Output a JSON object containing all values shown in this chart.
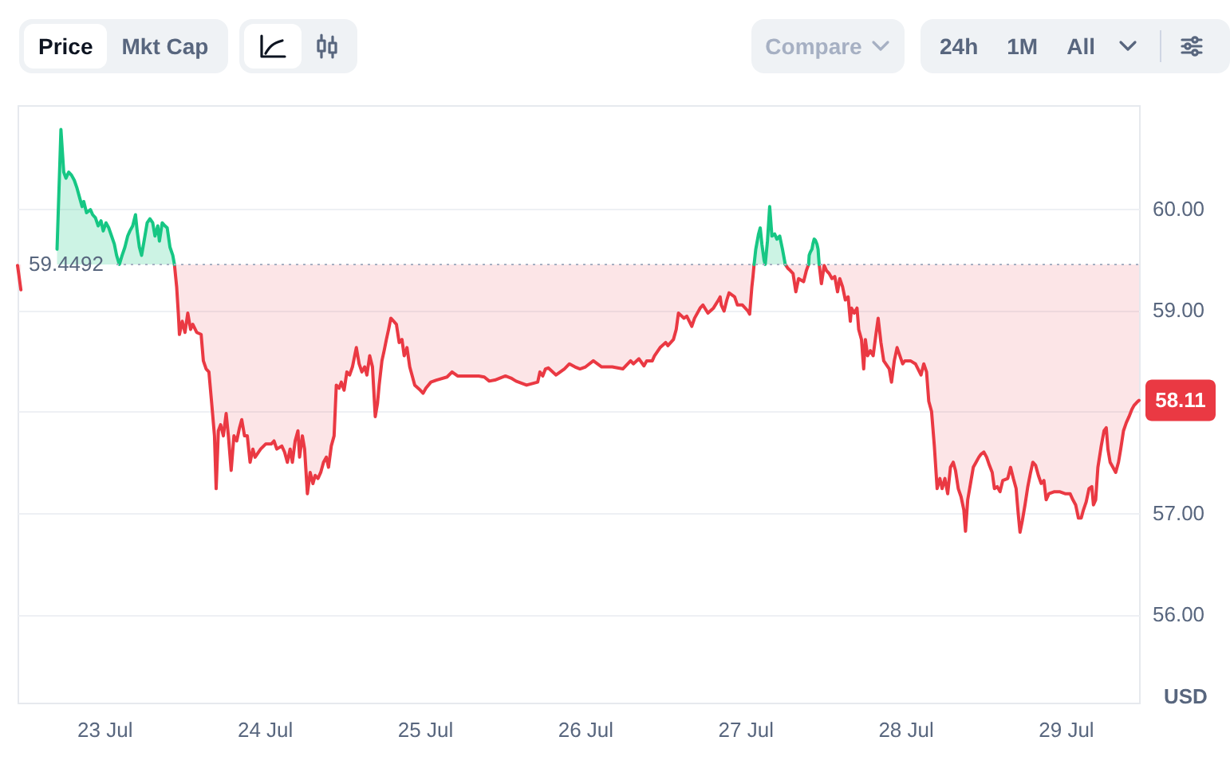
{
  "chart_data": {
    "type": "line",
    "annotations": [
      "Price",
      "Mkt Cap",
      "Compare",
      "24h",
      "1M",
      "All",
      {
        "text": "58.11",
        "x": "--07-29T11:00",
        "y": 58.11
      }
    ],
    "ylabel": "USD",
    "xlim": [
      "--07-22T11:00",
      "--07-29T11:00"
    ],
    "xticks": [
      {
        "value": "--07-23",
        "label": "23 Jul"
      },
      {
        "value": "--07-24",
        "label": "24 Jul"
      },
      {
        "value": "--07-25",
        "label": "25 Jul"
      },
      {
        "value": "--07-26",
        "label": "26 Jul"
      },
      {
        "value": "--07-27",
        "label": "27 Jul"
      },
      {
        "value": "--07-28",
        "label": "28 Jul"
      },
      {
        "value": "--07-29",
        "label": "29 Jul"
      }
    ],
    "ylim": [
      55.13,
      61.02
    ],
    "yticks": [
      {
        "value": 56,
        "label": "56.00"
      },
      {
        "value": 57,
        "label": "57.00"
      },
      {
        "value": 58,
        "label": null
      },
      {
        "value": 59,
        "label": "59.00"
      },
      {
        "value": 60,
        "label": "60.00"
      }
    ],
    "grid": "y",
    "ref_lines": [
      {
        "axis": "y",
        "value": 59.4492,
        "label": "59.4492",
        "line_style": "dotted",
        "color": "#a6b0c3"
      }
    ],
    "series": [
      {
        "color": "#ea3943",
        "x": [
          "--07-22T11:00",
          "--07-22T11:30",
          "--07-22T12:00",
          "--07-23T10:30",
          "--07-23T10:50",
          "--07-23T11:05",
          "--07-23T11:15",
          "--07-23T11:40",
          "--07-23T12:05",
          "--07-23T12:30",
          "--07-23T12:55",
          "--07-23T13:15",
          "--07-23T13:50",
          "--07-23T14:30",
          "--07-23T14:50",
          "--07-23T15:15",
          "--07-23T15:40",
          "--07-23T16:05",
          "--07-23T16:30",
          "--07-23T16:45",
          "--07-23T17:05",
          "--07-23T17:25",
          "--07-23T17:50",
          "--07-23T18:15",
          "--07-23T18:35",
          "--07-23T19:00",
          "--07-23T19:25",
          "--07-23T19:50",
          "--07-23T20:15",
          "--07-23T20:35",
          "--07-23T21:00",
          "--07-23T21:25",
          "--07-23T21:50",
          "--07-23T22:15",
          "--07-23T22:35",
          "--07-23T23:25",
          "--07-24T00:10",
          "--07-24T01:00",
          "--07-24T01:25",
          "--07-24T01:50",
          "--07-24T02:35",
          "--07-24T03:00",
          "--07-24T03:25",
          "--07-24T03:50",
          "--07-24T04:10",
          "--07-24T04:35",
          "--07-24T05:00",
          "--07-24T05:15",
          "--07-24T05:40",
          "--07-24T06:00",
          "--07-24T06:25",
          "--07-24T06:50",
          "--07-24T07:15",
          "--07-24T07:35",
          "--07-24T08:00",
          "--07-24T08:25",
          "--07-24T08:50",
          "--07-24T09:15",
          "--07-24T09:35",
          "--07-24T10:00",
          "--07-24T10:25",
          "--07-24T10:45",
          "--07-24T11:10",
          "--07-24T11:30",
          "--07-24T11:55",
          "--07-24T12:20",
          "--07-24T12:45",
          "--07-24T13:10",
          "--07-24T13:30",
          "--07-24T13:45",
          "--07-24T14:10",
          "--07-24T14:35",
          "--07-24T15:00",
          "--07-24T15:20",
          "--07-24T15:45",
          "--07-24T16:10",
          "--07-24T16:35",
          "--07-24T16:55",
          "--07-24T17:10",
          "--07-24T17:35",
          "--07-24T17:55",
          "--07-24T18:15",
          "--07-24T18:35",
          "--07-24T18:55",
          "--07-24T19:20",
          "--07-24T19:45",
          "--07-24T20:10",
          "--07-24T20:35",
          "--07-24T20:55",
          "--07-24T21:20",
          "--07-24T21:45",
          "--07-24T22:10",
          "--07-24T22:30",
          "--07-24T23:20",
          "--07-24T23:45",
          "--07-25T00:10",
          "--07-25T00:55",
          "--07-25T01:45",
          "--07-25T03:20",
          "--07-25T04:05",
          "--07-25T04:55",
          "--07-25T06:30",
          "--07-25T08:05",
          "--07-25T08:55",
          "--07-25T09:40",
          "--07-25T10:30",
          "--07-25T12:05",
          "--07-25T12:55",
          "--07-25T13:40",
          "--07-25T15:15",
          "--07-25T16:55",
          "--07-25T17:15",
          "--07-25T17:40",
          "--07-25T18:05",
          "--07-25T18:30",
          "--07-25T19:40",
          "--07-25T20:55",
          "--07-25T21:40",
          "--07-25T22:30",
          "--07-25T23:15",
          "--07-26T00:05",
          "--07-26T01:15",
          "--07-26T02:30",
          "--07-26T04:05",
          "--07-26T05:40",
          "--07-26T06:50",
          "--07-26T07:15",
          "--07-26T08:05",
          "--07-26T08:50",
          "--07-26T09:15",
          "--07-26T10:05",
          "--07-26T10:25",
          "--07-26T11:15",
          "--07-26T12:05",
          "--07-26T12:25",
          "--07-26T13:15",
          "--07-26T13:40",
          "--07-26T14:00",
          "--07-26T14:50",
          "--07-26T15:15",
          "--07-26T16:00",
          "--07-26T16:25",
          "--07-26T17:15",
          "--07-26T17:40",
          "--07-26T18:25",
          "--07-26T19:15",
          "--07-26T20:00",
          "--07-26T20:15",
          "--07-26T20:25",
          "--07-26T20:50",
          "--07-26T21:15",
          "--07-26T21:35",
          "--07-26T22:25",
          "--07-26T22:50",
          "--07-26T23:35",
          "--07-27T00:25",
          "--07-27T00:40",
          "--07-27T01:00",
          "--07-27T01:10",
          "--07-27T01:20",
          "--07-27T03:00",
          "--07-27T06:00",
          "--07-27T06:25",
          "--07-27T06:45",
          "--07-27T07:10",
          "--07-27T07:35",
          "--07-27T08:00",
          "--07-27T08:45",
          "--07-27T09:10",
          "--07-27T09:30",
          "--07-27T10:15",
          "--07-27T11:05",
          "--07-27T11:25",
          "--07-27T11:50",
          "--07-27T12:10",
          "--07-27T12:35",
          "--07-27T13:00",
          "--07-27T13:25",
          "--07-27T13:50",
          "--07-27T14:10",
          "--07-27T14:35",
          "--07-27T15:00",
          "--07-27T15:25",
          "--07-27T15:45",
          "--07-27T15:55",
          "--07-27T16:20",
          "--07-27T16:45",
          "--07-27T17:00",
          "--07-27T17:25",
          "--07-27T17:45",
          "--07-27T18:00",
          "--07-27T18:20",
          "--07-27T18:45",
          "--07-27T19:10",
          "--07-27T19:35",
          "--07-27T19:55",
          "--07-27T20:20",
          "--07-27T20:45",
          "--07-27T21:35",
          "--07-27T21:55",
          "--07-27T22:20",
          "--07-27T22:45",
          "--07-27T23:35",
          "--07-27T23:55",
          "--07-28T00:45",
          "--07-28T01:30",
          "--07-28T02:20",
          "--07-28T02:45",
          "--07-28T03:10",
          "--07-28T03:30",
          "--07-28T03:55",
          "--07-28T04:20",
          "--07-28T04:45",
          "--07-28T05:10",
          "--07-28T05:30",
          "--07-28T05:55",
          "--07-28T06:20",
          "--07-28T06:45",
          "--07-28T07:10",
          "--07-28T07:30",
          "--07-28T07:55",
          "--07-28T08:20",
          "--07-28T08:45",
          "--07-28T09:00",
          "--07-28T09:20",
          "--07-28T09:45",
          "--07-28T10:10",
          "--07-28T10:35",
          "--07-28T11:00",
          "--07-28T11:20",
          "--07-28T11:45",
          "--07-28T12:10",
          "--07-28T12:35",
          "--07-28T13:00",
          "--07-28T13:20",
          "--07-28T13:45",
          "--07-28T14:10",
          "--07-28T14:35",
          "--07-28T15:20",
          "--07-28T15:45",
          "--07-28T16:10",
          "--07-28T16:35",
          "--07-28T16:55",
          "--07-28T17:10",
          "--07-28T17:30",
          "--07-28T17:55",
          "--07-28T18:20",
          "--07-28T18:45",
          "--07-28T19:05",
          "--07-28T19:30",
          "--07-28T19:55",
          "--07-28T20:20",
          "--07-28T20:45",
          "--07-28T21:05",
          "--07-28T21:30",
          "--07-28T22:20",
          "--07-28T23:05",
          "--07-28T23:55",
          "--07-29T00:40",
          "--07-29T01:05",
          "--07-29T01:30",
          "--07-29T01:55",
          "--07-29T02:20",
          "--07-29T02:40",
          "--07-29T03:05",
          "--07-29T03:30",
          "--07-29T03:55",
          "--07-29T04:10",
          "--07-29T04:30",
          "--07-29T04:50",
          "--07-29T05:20",
          "--07-29T05:45",
          "--07-29T06:05",
          "--07-29T06:20",
          "--07-29T06:40",
          "--07-29T07:05",
          "--07-29T07:30",
          "--07-29T07:55",
          "--07-29T08:15",
          "--07-29T08:40",
          "--07-29T09:05",
          "--07-29T09:30",
          "--07-29T09:55",
          "--07-29T10:15",
          "--07-29T10:40",
          "--07-29T11:00"
        ],
        "values": [
          59.44,
          59.2,
          null,
          59.45,
          59.23,
          58.97,
          58.76,
          58.89,
          58.78,
          58.97,
          58.81,
          58.86,
          58.78,
          58.76,
          58.5,
          58.42,
          58.39,
          58.08,
          57.76,
          57.24,
          57.81,
          57.87,
          57.76,
          57.98,
          57.76,
          57.42,
          57.76,
          57.71,
          57.84,
          57.92,
          57.76,
          57.76,
          57.5,
          57.63,
          57.55,
          57.63,
          57.68,
          57.68,
          57.71,
          57.63,
          57.66,
          57.6,
          57.5,
          57.63,
          57.5,
          57.71,
          57.81,
          57.55,
          57.76,
          57.63,
          57.19,
          57.4,
          57.29,
          57.37,
          57.34,
          57.4,
          57.5,
          57.55,
          57.45,
          57.66,
          57.76,
          58.26,
          58.23,
          58.29,
          58.21,
          58.39,
          58.36,
          58.44,
          58.55,
          58.63,
          58.47,
          58.39,
          58.44,
          58.36,
          58.55,
          58.44,
          57.95,
          58.08,
          58.26,
          58.5,
          58.6,
          58.71,
          58.81,
          58.92,
          58.89,
          58.86,
          58.68,
          58.71,
          58.55,
          58.63,
          58.44,
          58.34,
          58.26,
          58.21,
          58.18,
          58.23,
          58.29,
          58.31,
          58.34,
          58.39,
          58.35,
          58.35,
          58.35,
          58.34,
          58.3,
          58.31,
          58.35,
          58.33,
          58.3,
          58.26,
          58.29,
          58.39,
          58.35,
          58.42,
          58.43,
          58.36,
          58.42,
          58.47,
          58.44,
          58.42,
          58.44,
          58.5,
          58.44,
          58.44,
          58.42,
          58.5,
          58.47,
          58.52,
          58.45,
          58.5,
          58.5,
          58.55,
          58.63,
          58.68,
          58.65,
          58.71,
          58.81,
          58.97,
          58.92,
          58.94,
          58.84,
          58.92,
          59.02,
          59.05,
          58.97,
          59.02,
          59.1,
          59.13,
          59.05,
          58.99,
          59.1,
          59.17,
          59.13,
          59.05,
          59.05,
          58.99,
          58.96,
          59.23,
          59.33,
          59.45,
          null,
          59.45,
          59.41,
          59.39,
          59.36,
          59.18,
          59.31,
          59.28,
          59.39,
          59.45,
          null,
          59.45,
          59.26,
          59.44,
          59.39,
          59.36,
          59.31,
          59.33,
          59.18,
          59.31,
          59.23,
          59.1,
          59.13,
          58.89,
          59.02,
          58.97,
          59.02,
          58.81,
          58.71,
          58.42,
          58.71,
          58.55,
          58.6,
          58.55,
          58.76,
          58.92,
          58.68,
          58.5,
          58.42,
          58.29,
          58.5,
          58.63,
          58.47,
          58.5,
          58.5,
          58.47,
          58.36,
          58.47,
          58.39,
          58.1,
          58.0,
          57.66,
          57.24,
          57.34,
          57.24,
          57.34,
          57.19,
          57.45,
          57.5,
          57.42,
          57.24,
          57.16,
          57.03,
          56.82,
          57.13,
          57.29,
          57.45,
          57.5,
          57.55,
          57.58,
          57.6,
          57.55,
          57.47,
          57.4,
          57.24,
          57.26,
          57.21,
          57.32,
          57.34,
          57.45,
          57.34,
          57.24,
          56.98,
          56.81,
          56.92,
          57.08,
          57.26,
          57.4,
          57.5,
          57.47,
          57.37,
          57.29,
          57.32,
          57.13,
          57.19,
          57.21,
          57.21,
          57.19,
          57.19,
          57.13,
          57.08,
          56.95,
          56.95,
          57.03,
          57.11,
          57.24,
          57.26,
          57.08,
          57.13,
          57.45,
          57.66,
          57.81,
          57.84,
          57.63,
          57.5,
          57.45,
          57.4,
          57.5,
          57.63,
          57.81,
          57.89,
          57.95,
          58.02,
          58.06,
          58.09,
          58.11
        ],
        "lower": [
          59.44,
          59.2,
          null,
          59.45,
          59.23,
          58.97,
          58.76,
          58.89,
          58.78,
          58.97,
          58.81,
          58.86,
          58.78,
          58.76,
          58.5,
          58.42,
          58.39,
          58.08,
          57.76,
          57.24,
          57.81,
          57.87,
          57.76,
          57.98,
          57.76,
          57.42,
          57.76,
          57.71,
          57.84,
          57.92,
          57.76,
          57.76,
          57.5,
          57.63,
          57.55,
          57.63,
          57.68,
          57.68,
          57.71,
          57.63,
          57.66,
          57.6,
          57.5,
          57.63,
          57.5,
          57.71,
          57.81,
          57.55,
          57.76,
          57.63,
          57.19,
          57.4,
          57.29,
          57.37,
          57.34,
          57.4,
          57.5,
          57.55,
          57.45,
          57.66,
          57.76,
          58.26,
          58.23,
          58.29,
          58.21,
          58.39,
          58.36,
          58.44,
          58.55,
          58.63,
          58.47,
          58.39,
          58.44,
          58.36,
          58.55,
          58.44,
          57.95,
          58.08,
          58.26,
          58.5,
          58.6,
          58.71,
          58.81,
          58.92,
          58.89,
          58.86,
          58.68,
          58.71,
          58.55,
          58.63,
          58.44,
          58.34,
          58.26,
          58.21,
          58.18,
          58.23,
          58.29,
          58.31,
          58.34,
          58.39,
          58.35,
          58.35,
          58.35,
          58.34,
          58.3,
          58.31,
          58.35,
          58.33,
          58.3,
          58.26,
          58.29,
          58.39,
          58.35,
          58.42,
          58.43,
          58.36,
          58.42,
          58.47,
          58.44,
          58.42,
          58.44,
          58.5,
          58.44,
          58.44,
          58.42,
          58.5,
          58.47,
          58.52,
          58.45,
          58.5,
          58.5,
          58.55,
          58.63,
          58.68,
          58.65,
          58.71,
          58.81,
          58.97,
          58.92,
          58.94,
          58.84,
          58.92,
          59.02,
          59.05,
          58.97,
          59.02,
          59.1,
          59.13,
          59.05,
          58.99,
          59.1,
          59.17,
          59.13,
          59.05,
          59.05,
          58.99,
          58.96,
          59.23,
          59.33,
          59.45,
          null,
          59.45,
          59.41,
          59.39,
          59.36,
          59.18,
          59.31,
          59.28,
          59.39,
          59.45,
          null,
          59.45,
          59.26,
          59.44,
          59.39,
          59.36,
          59.31,
          59.33,
          59.18,
          59.31,
          59.23,
          59.1,
          59.13,
          58.89,
          59.02,
          58.97,
          59.02,
          58.81,
          58.71,
          58.42,
          58.71,
          58.55,
          58.6,
          58.55,
          58.76,
          58.92,
          58.68,
          58.5,
          58.42,
          58.29,
          58.5,
          58.63,
          58.47,
          58.5,
          58.5,
          58.47,
          58.36,
          58.47,
          58.39,
          58.1,
          58.0,
          57.66,
          57.24,
          57.34,
          57.24,
          57.34,
          57.19,
          57.45,
          57.5,
          57.42,
          57.24,
          57.16,
          57.03,
          56.82,
          57.13,
          57.29,
          57.45,
          57.5,
          57.55,
          57.58,
          57.6,
          57.55,
          57.47,
          57.4,
          57.24,
          57.26,
          57.21,
          57.32,
          57.34,
          57.45,
          57.34,
          57.24,
          56.98,
          56.81,
          56.92,
          57.08,
          57.26,
          57.4,
          57.5,
          57.47,
          57.37,
          57.29,
          57.32,
          57.13,
          57.19,
          57.21,
          57.21,
          57.19,
          57.19,
          57.13,
          57.08,
          56.95,
          56.95,
          57.03,
          57.11,
          57.24,
          57.26,
          57.08,
          57.13,
          57.45,
          57.66,
          57.81,
          57.84,
          57.63,
          57.5,
          57.45,
          57.4,
          57.5,
          57.63,
          57.81,
          57.89,
          57.95,
          58.02,
          58.06,
          58.09,
          58.11
        ],
        "upper": [
          59.45,
          59.45,
          null,
          59.45,
          59.45,
          59.45,
          59.45,
          59.45,
          59.45,
          59.45,
          59.45,
          59.45,
          59.45,
          59.45,
          59.45,
          59.45,
          59.45,
          59.45,
          59.45,
          59.45,
          59.45,
          59.45,
          59.45,
          59.45,
          59.45,
          59.45,
          59.45,
          59.45,
          59.45,
          59.45,
          59.45,
          59.45,
          59.45,
          59.45,
          59.45,
          59.45,
          59.45,
          59.45,
          59.45,
          59.45,
          59.45,
          59.45,
          59.45,
          59.45,
          59.45,
          59.45,
          59.45,
          59.45,
          59.45,
          59.45,
          59.45,
          59.45,
          59.45,
          59.45,
          59.45,
          59.45,
          59.45,
          59.45,
          59.45,
          59.45,
          59.45,
          59.45,
          59.45,
          59.45,
          59.45,
          59.45,
          59.45,
          59.45,
          59.45,
          59.45,
          59.45,
          59.45,
          59.45,
          59.45,
          59.45,
          59.45,
          59.45,
          59.45,
          59.45,
          59.45,
          59.45,
          59.45,
          59.45,
          59.45,
          59.45,
          59.45,
          59.45,
          59.45,
          59.45,
          59.45,
          59.45,
          59.45,
          59.45,
          59.45,
          59.45,
          59.45,
          59.45,
          59.45,
          59.45,
          59.45,
          59.45,
          59.45,
          59.45,
          59.45,
          59.45,
          59.45,
          59.45,
          59.45,
          59.45,
          59.45,
          59.45,
          59.45,
          59.45,
          59.45,
          59.45,
          59.45,
          59.45,
          59.45,
          59.45,
          59.45,
          59.45,
          59.45,
          59.45,
          59.45,
          59.45,
          59.45,
          59.45,
          59.45,
          59.45,
          59.45,
          59.45,
          59.45,
          59.45,
          59.45,
          59.45,
          59.45,
          59.45,
          59.45,
          59.45,
          59.45,
          59.45,
          59.45,
          59.45,
          59.45,
          59.45,
          59.45,
          59.45,
          59.45,
          59.45,
          59.45,
          59.45,
          59.45,
          59.45,
          59.45,
          59.45,
          59.45,
          59.45,
          59.45,
          59.45,
          59.45,
          null,
          59.45,
          59.45,
          59.45,
          59.45,
          59.45,
          59.45,
          59.45,
          59.45,
          59.45,
          null,
          59.45,
          59.45,
          59.45,
          59.45,
          59.45,
          59.45,
          59.45,
          59.45,
          59.45,
          59.45,
          59.45,
          59.45,
          59.45,
          59.45,
          59.45,
          59.45,
          59.45,
          59.45,
          59.45,
          59.45,
          59.45,
          59.45,
          59.45,
          59.45,
          59.45,
          59.45,
          59.45,
          59.45,
          59.45,
          59.45,
          59.45,
          59.45,
          59.45,
          59.45,
          59.45,
          59.45,
          59.45,
          59.45,
          59.45,
          59.45,
          59.45,
          59.45,
          59.45,
          59.45,
          59.45,
          59.45,
          59.45,
          59.45,
          59.45,
          59.45,
          59.45,
          59.45,
          59.45,
          59.45,
          59.45,
          59.45,
          59.45,
          59.45,
          59.45,
          59.45,
          59.45,
          59.45,
          59.45,
          59.45,
          59.45,
          59.45,
          59.45,
          59.45,
          59.45,
          59.45,
          59.45,
          59.45,
          59.45,
          59.45,
          59.45,
          59.45,
          59.45,
          59.45,
          59.45,
          59.45,
          59.45,
          59.45,
          59.45,
          59.45,
          59.45,
          59.45,
          59.45,
          59.45,
          59.45,
          59.45,
          59.45,
          59.45,
          59.45,
          59.45,
          59.45,
          59.45,
          59.45,
          59.45,
          59.45,
          59.45,
          59.45,
          59.45,
          59.45,
          59.45,
          59.45,
          59.45,
          59.45,
          59.45,
          59.45,
          59.45,
          59.45,
          59.45,
          59.45,
          59.45,
          59.45
        ]
      },
      {
        "color": "#16c784",
        "x": [
          "--07-22T16:55",
          "--07-22T17:30",
          "--07-22T17:55",
          "--07-22T18:15",
          "--07-22T18:40",
          "--07-22T19:05",
          "--07-22T19:30",
          "--07-22T19:55",
          "--07-22T20:15",
          "--07-22T20:40",
          "--07-22T20:55",
          "--07-22T21:20",
          "--07-22T21:55",
          "--07-22T22:15",
          "--07-22T22:40",
          "--07-22T23:05",
          "--07-22T23:30",
          "--07-22T23:50",
          "--07-23T00:15",
          "--07-23T00:40",
          "--07-23T01:05",
          "--07-23T01:30",
          "--07-23T01:50",
          "--07-23T02:15",
          "--07-23T02:40",
          "--07-23T03:05",
          "--07-23T03:30",
          "--07-23T03:50",
          "--07-23T04:15",
          "--07-23T04:40",
          "--07-23T04:55",
          "--07-23T05:15",
          "--07-23T05:35",
          "--07-23T06:00",
          "--07-23T06:25",
          "--07-23T06:50",
          "--07-23T07:15",
          "--07-23T07:35",
          "--07-23T08:00",
          "--07-23T08:15",
          "--07-23T08:40",
          "--07-23T09:05",
          "--07-23T09:25",
          "--07-23T09:50",
          "--07-23T10:15",
          "--07-23T10:30",
          "--07-25T12:00",
          "--07-27T01:20",
          "--07-27T01:35",
          "--07-27T02:00",
          "--07-27T02:15",
          "--07-27T02:30",
          "--07-27T02:50",
          "--07-27T03:00",
          "--07-27T03:20",
          "--07-27T03:40",
          "--07-27T04:00",
          "--07-27T04:25",
          "--07-27T04:45",
          "--07-27T05:10",
          "--07-27T05:35",
          "--07-27T06:00",
          "--07-27T07:00",
          "--07-27T09:30",
          "--07-27T09:35",
          "--07-27T09:45",
          "--07-27T10:00",
          "--07-27T10:10",
          "--07-27T10:20",
          "--07-27T10:30",
          "--07-27T10:45",
          "--07-27T10:55",
          "--07-27T11:00",
          "--07-27T11:05"
        ],
        "values": [
          59.6,
          60.78,
          60.36,
          60.3,
          60.36,
          60.33,
          60.28,
          60.2,
          60.12,
          60.02,
          60.07,
          59.96,
          59.99,
          59.94,
          59.91,
          59.83,
          59.88,
          59.78,
          59.86,
          59.81,
          59.73,
          59.65,
          59.54,
          59.45,
          59.54,
          59.62,
          59.73,
          59.78,
          59.83,
          59.94,
          59.78,
          59.62,
          59.54,
          59.7,
          59.86,
          59.9,
          59.86,
          59.73,
          59.83,
          59.68,
          59.86,
          59.83,
          59.81,
          59.62,
          59.54,
          59.45,
          null,
          59.45,
          59.6,
          59.75,
          59.81,
          59.65,
          59.49,
          59.45,
          59.68,
          60.02,
          59.73,
          59.75,
          59.7,
          59.73,
          59.6,
          59.45,
          null,
          59.45,
          59.54,
          59.57,
          59.6,
          59.66,
          59.7,
          59.69,
          59.65,
          59.6,
          59.52,
          59.45
        ],
        "lower": [
          59.45,
          59.45,
          59.45,
          59.45,
          59.45,
          59.45,
          59.45,
          59.45,
          59.45,
          59.45,
          59.45,
          59.45,
          59.45,
          59.45,
          59.45,
          59.45,
          59.45,
          59.45,
          59.45,
          59.45,
          59.45,
          59.45,
          59.45,
          59.45,
          59.45,
          59.45,
          59.45,
          59.45,
          59.45,
          59.45,
          59.45,
          59.45,
          59.45,
          59.45,
          59.45,
          59.45,
          59.45,
          59.45,
          59.45,
          59.45,
          59.45,
          59.45,
          59.45,
          59.45,
          59.45,
          59.45,
          null,
          59.45,
          59.45,
          59.45,
          59.45,
          59.45,
          59.45,
          59.45,
          59.45,
          59.45,
          59.45,
          59.45,
          59.45,
          59.45,
          59.45,
          59.45,
          null,
          59.45,
          59.45,
          59.45,
          59.45,
          59.45,
          59.45,
          59.45,
          59.45,
          59.45,
          59.45,
          59.45
        ],
        "upper": [
          59.6,
          60.78,
          60.36,
          60.3,
          60.36,
          60.33,
          60.28,
          60.2,
          60.12,
          60.02,
          60.07,
          59.96,
          59.99,
          59.94,
          59.91,
          59.83,
          59.88,
          59.78,
          59.86,
          59.81,
          59.73,
          59.65,
          59.54,
          59.45,
          59.54,
          59.62,
          59.73,
          59.78,
          59.83,
          59.94,
          59.78,
          59.62,
          59.54,
          59.7,
          59.86,
          59.9,
          59.86,
          59.73,
          59.83,
          59.68,
          59.86,
          59.83,
          59.81,
          59.62,
          59.54,
          59.45,
          null,
          59.45,
          59.6,
          59.75,
          59.81,
          59.65,
          59.49,
          59.45,
          59.68,
          60.02,
          59.73,
          59.75,
          59.7,
          59.73,
          59.6,
          59.45,
          null,
          59.45,
          59.54,
          59.57,
          59.6,
          59.66,
          59.7,
          59.69,
          59.65,
          59.6,
          59.52,
          59.45
        ]
      }
    ]
  }
}
